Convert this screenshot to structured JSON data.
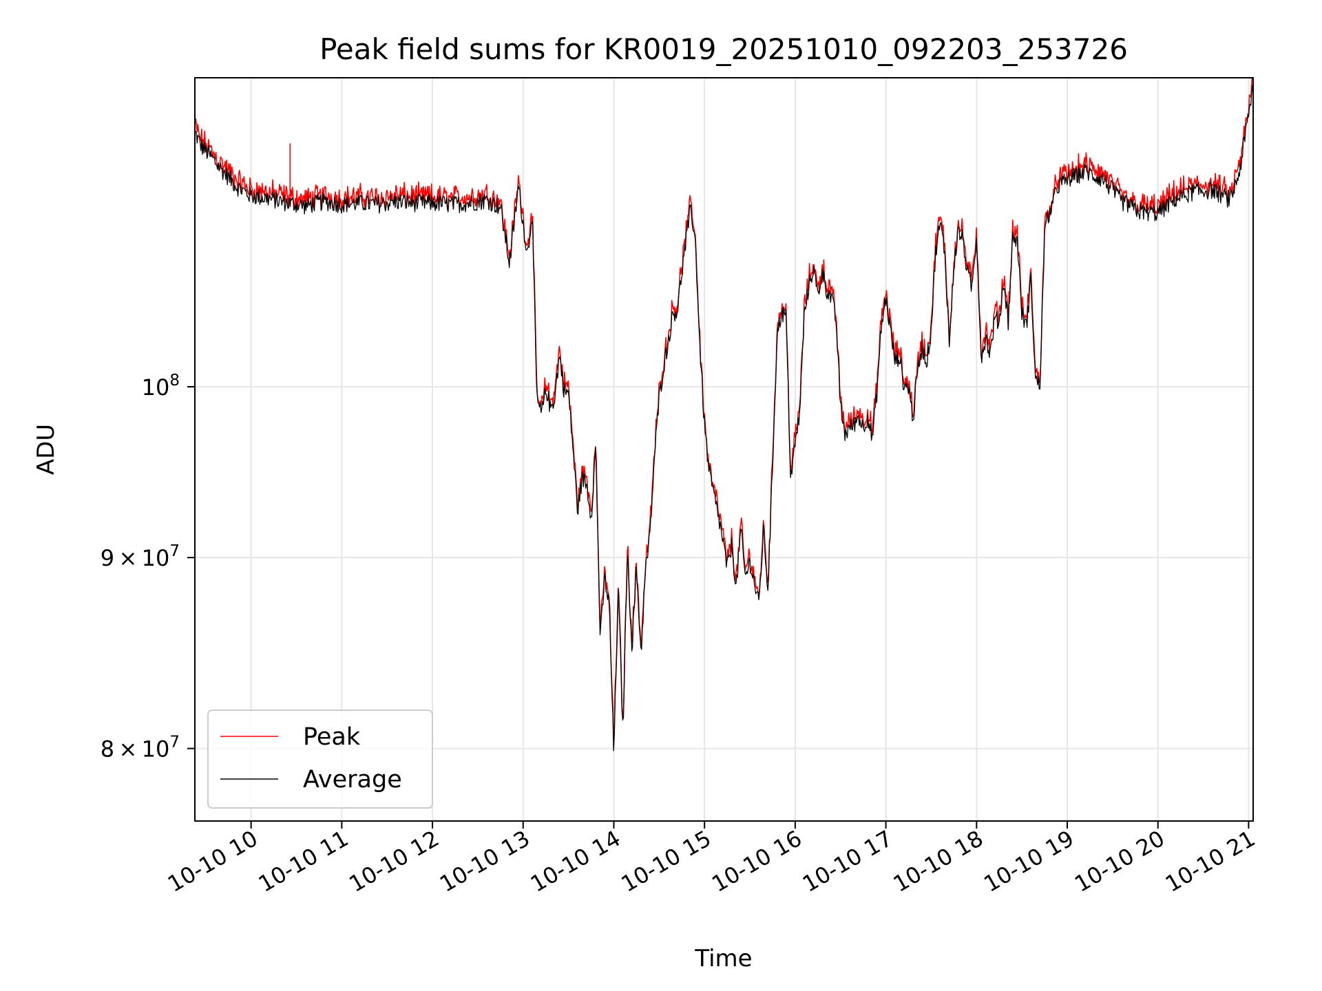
{
  "chart_data": {
    "type": "line",
    "title": "Peak field sums for KR0019_20251010_092203_253726",
    "xlabel": "Time",
    "ylabel": "ADU",
    "yscale": "log",
    "xlim": [
      9.38,
      21.05
    ],
    "ylim": [
      76500000,
      121000000
    ],
    "grid": true,
    "legend_position": "lower-left",
    "x_ticks": [
      10,
      11,
      12,
      13,
      14,
      15,
      16,
      17,
      18,
      19,
      20,
      21
    ],
    "x_tick_labels": [
      "10-10 10",
      "10-10 11",
      "10-10 12",
      "10-10 13",
      "10-10 14",
      "10-10 15",
      "10-10 16",
      "10-10 17",
      "10-10 18",
      "10-10 19",
      "10-10 20",
      "10-10 21"
    ],
    "y_ticks": [
      {
        "value": 80000000,
        "mantissa": "8",
        "op": "×",
        "base": "10",
        "exp": "7"
      },
      {
        "value": 90000000,
        "mantissa": "9",
        "op": "×",
        "base": "10",
        "exp": "7"
      },
      {
        "value": 100000000,
        "mantissa": "",
        "op": "",
        "base": "10",
        "exp": "8"
      }
    ],
    "series": [
      {
        "name": "Peak",
        "color": "#ff0000"
      },
      {
        "name": "Average",
        "color": "#000000"
      }
    ],
    "average": {
      "x": [
        9.38,
        9.45,
        9.55,
        9.65,
        9.75,
        9.85,
        10.0,
        10.2,
        10.4,
        10.6,
        10.8,
        11.0,
        11.2,
        11.4,
        11.6,
        11.8,
        12.0,
        12.2,
        12.4,
        12.6,
        12.75,
        12.85,
        12.95,
        13.0,
        13.05,
        13.1,
        13.15,
        13.2,
        13.25,
        13.27,
        13.3,
        13.35,
        13.4,
        13.45,
        13.5,
        13.55,
        13.6,
        13.65,
        13.7,
        13.75,
        13.8,
        13.85,
        13.9,
        13.95,
        14.0,
        14.05,
        14.1,
        14.15,
        14.2,
        14.25,
        14.3,
        14.35,
        14.4,
        14.45,
        14.5,
        14.55,
        14.6,
        14.65,
        14.7,
        14.75,
        14.8,
        14.85,
        14.9,
        14.95,
        15.0,
        15.05,
        15.1,
        15.15,
        15.2,
        15.25,
        15.3,
        15.35,
        15.4,
        15.45,
        15.5,
        15.55,
        15.6,
        15.65,
        15.7,
        15.75,
        15.8,
        15.85,
        15.9,
        15.95,
        16.0,
        16.05,
        16.1,
        16.15,
        16.2,
        16.25,
        16.3,
        16.35,
        16.4,
        16.45,
        16.5,
        16.55,
        16.6,
        16.65,
        16.7,
        16.75,
        16.8,
        16.85,
        16.9,
        16.95,
        17.0,
        17.05,
        17.1,
        17.15,
        17.2,
        17.25,
        17.3,
        17.35,
        17.4,
        17.45,
        17.5,
        17.55,
        17.6,
        17.65,
        17.7,
        17.75,
        17.8,
        17.85,
        17.9,
        17.95,
        18.0,
        18.05,
        18.1,
        18.15,
        18.2,
        18.25,
        18.3,
        18.35,
        18.4,
        18.45,
        18.5,
        18.55,
        18.6,
        18.65,
        18.7,
        18.75,
        18.8,
        18.85,
        18.88,
        18.9,
        19.0,
        19.2,
        19.4,
        19.6,
        19.8,
        20.0,
        20.2,
        20.4,
        20.6,
        20.8,
        20.9,
        20.95,
        21.0,
        21.05
      ],
      "y": [
        117000000,
        116000000,
        115300000,
        114500000,
        113800000,
        113100000,
        112500000,
        112300000,
        112000000,
        111800000,
        112100000,
        111900000,
        112000000,
        111900000,
        112100000,
        112000000,
        112000000,
        111900000,
        112000000,
        112200000,
        111700000,
        107900000,
        113200000,
        110500000,
        108500000,
        111500000,
        99300000,
        98300000,
        99700000,
        99600000,
        98600000,
        99400000,
        102000000,
        99800000,
        99600000,
        96300000,
        92600000,
        94500000,
        94200000,
        92300000,
        96300000,
        85500000,
        88900000,
        87300000,
        79700000,
        88200000,
        80700000,
        90300000,
        85100000,
        89400000,
        84800000,
        89300000,
        91300000,
        95900000,
        99300000,
        101300000,
        102800000,
        104600000,
        104800000,
        107300000,
        109600000,
        111700000,
        109200000,
        102300000,
        97600000,
        94900000,
        93600000,
        92400000,
        91000000,
        89400000,
        90700000,
        88300000,
        91600000,
        88900000,
        89800000,
        88600000,
        87400000,
        91500000,
        88200000,
        95200000,
        103200000,
        104700000,
        104400000,
        94500000,
        96500000,
        98400000,
        104500000,
        106400000,
        107600000,
        105800000,
        107300000,
        106100000,
        105600000,
        104200000,
        98700000,
        97100000,
        97500000,
        97700000,
        98200000,
        97500000,
        98200000,
        96800000,
        99600000,
        103800000,
        105600000,
        103600000,
        101600000,
        101900000,
        100000000,
        100000000,
        98000000,
        101000000,
        102500000,
        101500000,
        103600000,
        108800000,
        110600000,
        108600000,
        102600000,
        107800000,
        110100000,
        109500000,
        107200000,
        106300000,
        109800000,
        101800000,
        103100000,
        102000000,
        104300000,
        104100000,
        106700000,
        104100000,
        109700000,
        109400000,
        104600000,
        103800000,
        106800000,
        100400000,
        100100000,
        109900000,
        111300000,
        112000000,
        113000000,
        113200000,
        113600000,
        114200000,
        113600000,
        112100000,
        111400000,
        111300000,
        112300000,
        112800000,
        112900000,
        112200000,
        114200000,
        116200000,
        118200000,
        120500000
      ]
    },
    "peak_offset_ratio": 1.005,
    "peak_spike": {
      "x": 10.43,
      "y": 116200000
    }
  }
}
